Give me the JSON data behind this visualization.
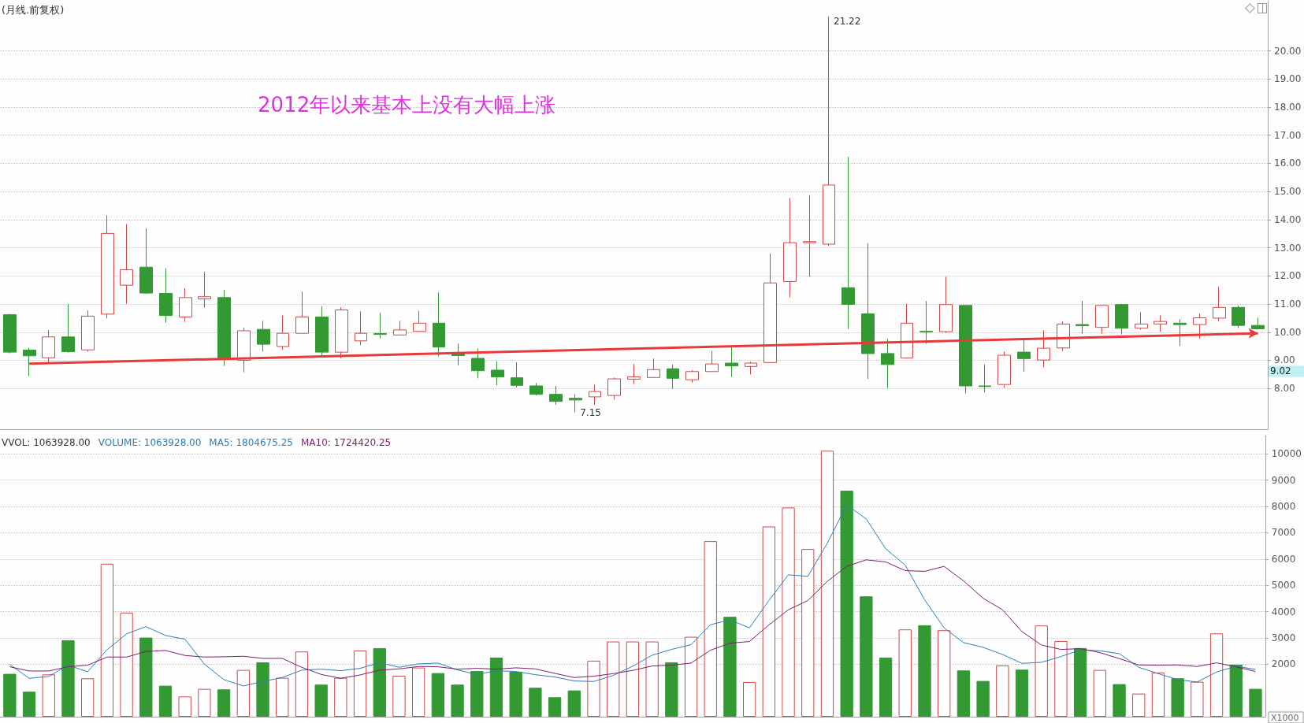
{
  "chart_data": [
    {
      "type": "candlestick",
      "title": "(月线.前复权)",
      "categories": [
        null,
        null,
        null,
        null,
        null,
        null,
        null,
        null,
        null,
        null,
        null,
        null,
        null,
        null,
        null,
        null,
        null,
        null,
        null,
        null,
        null,
        null,
        null,
        null,
        null,
        null,
        null,
        null,
        null,
        null,
        null,
        null,
        null,
        null,
        null,
        null,
        null,
        null,
        null,
        null,
        null,
        null,
        null,
        null,
        null,
        null,
        null,
        null,
        null,
        null,
        null,
        null,
        null,
        null,
        null,
        null,
        null,
        null,
        null,
        null,
        null,
        null,
        null,
        null,
        null
      ],
      "series": [
        {
          "type": "candlestick",
          "colors": [
            "#339933",
            "#339933",
            "#d04848",
            "#339933",
            "#d04848",
            "#d04848",
            "#d04848",
            "#339933",
            "#339933",
            "#d04848",
            "#d04848",
            "#339933",
            "#d04848",
            "#339933",
            "#d04848",
            "#d04848",
            "#339933",
            "#d04848",
            "#d04848",
            "#339933",
            "#d04848",
            "#d04848",
            "#339933",
            "#339933",
            "#339933",
            "#339933",
            "#339933",
            "#339933",
            "#339933",
            "#339933",
            "#d04848",
            "#d04848",
            "#d04848",
            "#d04848",
            "#339933",
            "#d04848",
            "#d04848",
            "#339933",
            "#d04848",
            "#d04848",
            "#d04848",
            "#d04848",
            "#d04848",
            "#339933",
            "#339933",
            "#339933",
            "#d04848",
            "#339933",
            "#d04848",
            "#339933",
            "#339933",
            "#d04848",
            "#339933",
            "#d04848",
            "#d04848",
            "#339933",
            "#d04848",
            "#339933",
            "#d04848",
            "#d04848",
            "#339933",
            "#d04848",
            "#d04848",
            "#339933",
            "#339933"
          ],
          "ohlc": [
            [
              10.62,
              10.65,
              9.25,
              9.29
            ],
            [
              9.36,
              9.44,
              8.44,
              9.16
            ],
            [
              9.09,
              10.08,
              8.9,
              9.83
            ],
            [
              9.83,
              11.01,
              9.27,
              9.31
            ],
            [
              9.37,
              10.77,
              9.31,
              10.57
            ],
            [
              10.64,
              14.16,
              10.49,
              13.51
            ],
            [
              11.67,
              13.84,
              11.01,
              12.22
            ],
            [
              12.31,
              13.69,
              11.36,
              11.39
            ],
            [
              11.38,
              12.27,
              10.34,
              10.59
            ],
            [
              10.54,
              11.56,
              10.37,
              11.23
            ],
            [
              11.18,
              12.15,
              10.87,
              11.26
            ],
            [
              11.23,
              11.51,
              8.8,
              9.03
            ],
            [
              9.0,
              10.16,
              8.58,
              10.05
            ],
            [
              10.1,
              10.4,
              9.31,
              9.57
            ],
            [
              9.49,
              10.59,
              9.37,
              9.96
            ],
            [
              9.96,
              11.44,
              9.96,
              10.54
            ],
            [
              10.54,
              10.92,
              9.14,
              9.29
            ],
            [
              9.29,
              10.89,
              9.07,
              10.79
            ],
            [
              9.69,
              10.74,
              9.54,
              9.96
            ],
            [
              9.95,
              10.69,
              9.78,
              9.92
            ],
            [
              9.9,
              10.4,
              9.9,
              10.08
            ],
            [
              10.03,
              10.75,
              10.03,
              10.32
            ],
            [
              10.32,
              11.41,
              9.14,
              9.47
            ],
            [
              9.24,
              9.59,
              8.82,
              9.17
            ],
            [
              9.07,
              9.41,
              8.36,
              8.63
            ],
            [
              8.65,
              8.97,
              8.11,
              8.41
            ],
            [
              8.38,
              8.93,
              8.03,
              8.11
            ],
            [
              8.09,
              8.19,
              7.75,
              7.79
            ],
            [
              7.79,
              8.09,
              7.42,
              7.54
            ],
            [
              7.65,
              7.79,
              7.15,
              7.59
            ],
            [
              7.7,
              8.13,
              7.42,
              7.89
            ],
            [
              7.75,
              8.39,
              7.6,
              8.34
            ],
            [
              8.33,
              8.87,
              8.16,
              8.41
            ],
            [
              8.39,
              9.06,
              8.39,
              8.67
            ],
            [
              8.7,
              8.85,
              7.99,
              8.36
            ],
            [
              8.31,
              8.65,
              8.21,
              8.6
            ],
            [
              8.6,
              9.34,
              8.6,
              8.87
            ],
            [
              8.9,
              9.47,
              8.41,
              8.8
            ],
            [
              8.78,
              8.95,
              8.5,
              8.9
            ],
            [
              8.92,
              12.79,
              8.92,
              11.75
            ],
            [
              11.8,
              14.77,
              11.24,
              13.18
            ],
            [
              13.18,
              14.87,
              11.97,
              13.22
            ],
            [
              13.13,
              21.22,
              13.06,
              15.23
            ],
            [
              11.58,
              16.23,
              10.11,
              10.99
            ],
            [
              10.65,
              13.16,
              8.34,
              9.24
            ],
            [
              9.24,
              9.76,
              8.01,
              8.85
            ],
            [
              9.08,
              11.01,
              9.06,
              10.32
            ],
            [
              10.03,
              11.11,
              9.59,
              10.01
            ],
            [
              10.02,
              11.97,
              9.97,
              10.98
            ],
            [
              10.95,
              10.95,
              7.82,
              8.09
            ],
            [
              8.09,
              8.85,
              7.86,
              8.07
            ],
            [
              8.14,
              9.31,
              8.02,
              9.18
            ],
            [
              9.29,
              9.72,
              8.6,
              9.06
            ],
            [
              9.01,
              10.07,
              8.75,
              9.43
            ],
            [
              9.44,
              10.38,
              9.33,
              10.29
            ],
            [
              10.27,
              11.11,
              9.95,
              10.23
            ],
            [
              10.17,
              10.98,
              9.95,
              10.95
            ],
            [
              10.98,
              11.01,
              9.92,
              10.14
            ],
            [
              10.14,
              10.71,
              10.09,
              10.29
            ],
            [
              10.29,
              10.6,
              10.02,
              10.38
            ],
            [
              10.32,
              10.46,
              9.51,
              10.27
            ],
            [
              10.27,
              10.66,
              9.77,
              10.51
            ],
            [
              10.5,
              11.62,
              10.38,
              10.88
            ],
            [
              10.88,
              10.95,
              10.15,
              10.24
            ],
            [
              10.24,
              10.51,
              10.12,
              10.12
            ]
          ]
        },
        {
          "type": "line",
          "color": "#e83a3a",
          "values": [
            null,
            8.88,
            null,
            null,
            null,
            null,
            null,
            null,
            null,
            null,
            null,
            null,
            null,
            null,
            null,
            null,
            null,
            null,
            null,
            null,
            null,
            null,
            null,
            null,
            null,
            null,
            null,
            null,
            null,
            null,
            null,
            null,
            null,
            null,
            null,
            null,
            null,
            null,
            null,
            null,
            null,
            null,
            null,
            null,
            null,
            null,
            null,
            null,
            null,
            null,
            null,
            null,
            null,
            null,
            null,
            null,
            null,
            null,
            null,
            null,
            null,
            null,
            null,
            null,
            9.96
          ]
        }
      ],
      "ylim": [
        6.55,
        21.75
      ],
      "yticks": [
        {
          "value": 8,
          "label": "8.00"
        },
        {
          "value": 9,
          "label": "9.00"
        },
        {
          "value": 10,
          "label": "10.00"
        },
        {
          "value": 11,
          "label": "11.00"
        },
        {
          "value": 12,
          "label": "12.00"
        },
        {
          "value": 13,
          "label": "13.00"
        },
        {
          "value": 14,
          "label": "14.00"
        },
        {
          "value": 15,
          "label": "15.00"
        },
        {
          "value": 16,
          "label": "16.00"
        },
        {
          "value": 17,
          "label": "17.00"
        },
        {
          "value": 18,
          "label": "18.00"
        },
        {
          "value": 19,
          "label": "19.00"
        },
        {
          "value": 20,
          "label": "20.00"
        }
      ],
      "grid": "y",
      "annotations": [
        "2012年以来基本上没有大幅上涨",
        "21.22",
        "7.15",
        "9.02"
      ]
    },
    {
      "type": "bar",
      "categories": [
        null,
        null,
        null,
        null,
        null,
        null,
        null,
        null,
        null,
        null,
        null,
        null,
        null,
        null,
        null,
        null,
        null,
        null,
        null,
        null,
        null,
        null,
        null,
        null,
        null,
        null,
        null,
        null,
        null,
        null,
        null,
        null,
        null,
        null,
        null,
        null,
        null,
        null,
        null,
        null,
        null,
        null,
        null,
        null,
        null,
        null,
        null,
        null,
        null,
        null,
        null,
        null,
        null,
        null,
        null,
        null,
        null,
        null,
        null,
        null,
        null,
        null,
        null,
        null,
        null
      ],
      "series": [
        {
          "type": "bar",
          "values": [
            1630,
            950,
            1610,
            2910,
            1460,
            5820,
            3960,
            3010,
            1180,
            770,
            1060,
            1040,
            1780,
            2070,
            1480,
            2480,
            1220,
            1480,
            2520,
            2610,
            1560,
            1870,
            1660,
            1220,
            1740,
            2250,
            1710,
            1100,
            740,
            1000,
            2130,
            2860,
            2860,
            2860,
            2070,
            3040,
            6680,
            3800,
            1320,
            7240,
            7960,
            6380,
            10120,
            8600,
            4580,
            2250,
            3320,
            3480,
            3290,
            1760,
            1360,
            1950,
            1790,
            3470,
            2880,
            2610,
            1780,
            1240,
            880,
            1680,
            1460,
            1330,
            3170,
            1980,
            1060
          ],
          "colors": [
            "#339933",
            "#339933",
            "#d04848",
            "#339933",
            "#d04848",
            "#d04848",
            "#d04848",
            "#339933",
            "#339933",
            "#d04848",
            "#d04848",
            "#339933",
            "#d04848",
            "#339933",
            "#d04848",
            "#d04848",
            "#339933",
            "#d04848",
            "#d04848",
            "#339933",
            "#d04848",
            "#d04848",
            "#339933",
            "#339933",
            "#339933",
            "#339933",
            "#339933",
            "#339933",
            "#339933",
            "#339933",
            "#d04848",
            "#d04848",
            "#d04848",
            "#d04848",
            "#339933",
            "#d04848",
            "#d04848",
            "#339933",
            "#d04848",
            "#d04848",
            "#d04848",
            "#d04848",
            "#d04848",
            "#339933",
            "#339933",
            "#339933",
            "#d04848",
            "#339933",
            "#d04848",
            "#339933",
            "#339933",
            "#d04848",
            "#339933",
            "#d04848",
            "#d04848",
            "#339933",
            "#d04848",
            "#339933",
            "#d04848",
            "#d04848",
            "#339933",
            "#d04848",
            "#d04848",
            "#339933",
            "#339933"
          ]
        },
        {
          "type": "line",
          "color": "#2a7fb8",
          "values": [
            1990,
            1460,
            1530,
            1960,
            1710,
            2550,
            3150,
            3430,
            3090,
            2950,
            2000,
            1410,
            1170,
            1340,
            1490,
            1770,
            1810,
            1750,
            1840,
            2060,
            1880,
            2010,
            2040,
            1780,
            1610,
            1750,
            1720,
            1600,
            1510,
            1360,
            1340,
            1570,
            1920,
            2340,
            2560,
            2740,
            3500,
            3690,
            3380,
            4420,
            5400,
            5340,
            6600,
            8060,
            7530,
            6390,
            5770,
            4450,
            3380,
            2820,
            2640,
            2370,
            2030,
            2070,
            2290,
            2540,
            2510,
            2400,
            1880,
            1640,
            1410,
            1320,
            1700,
            1920,
            1800
          ]
        },
        {
          "type": "line",
          "color": "#7a1f6e",
          "values": [
            1900,
            1740,
            1740,
            1900,
            1960,
            2270,
            2270,
            2480,
            2520,
            2330,
            2270,
            2280,
            2300,
            2220,
            2220,
            1880,
            1610,
            1460,
            1590,
            1770,
            1820,
            1910,
            1900,
            1810,
            1840,
            1810,
            1860,
            1820,
            1650,
            1490,
            1540,
            1640,
            1760,
            1930,
            1960,
            2040,
            2530,
            2800,
            2860,
            3490,
            4070,
            4420,
            5150,
            5720,
            5970,
            5890,
            5560,
            5530,
            5720,
            5170,
            4510,
            4070,
            3240,
            2730,
            2560,
            2590,
            2440,
            2210,
            1970,
            1960,
            1970,
            1910,
            2050,
            1900,
            1720
          ]
        }
      ],
      "ylim": [
        0,
        10700
      ],
      "yticks": [
        2000,
        3000,
        4000,
        5000,
        6000,
        7000,
        8000,
        9000,
        10000
      ],
      "grid": "y",
      "annotations": [
        "VVOL: 1063928.00",
        "VOLUME: 1063928.00",
        "MA5: 1804675.25",
        "MA10: 1724420.25",
        "X1000"
      ]
    }
  ]
}
